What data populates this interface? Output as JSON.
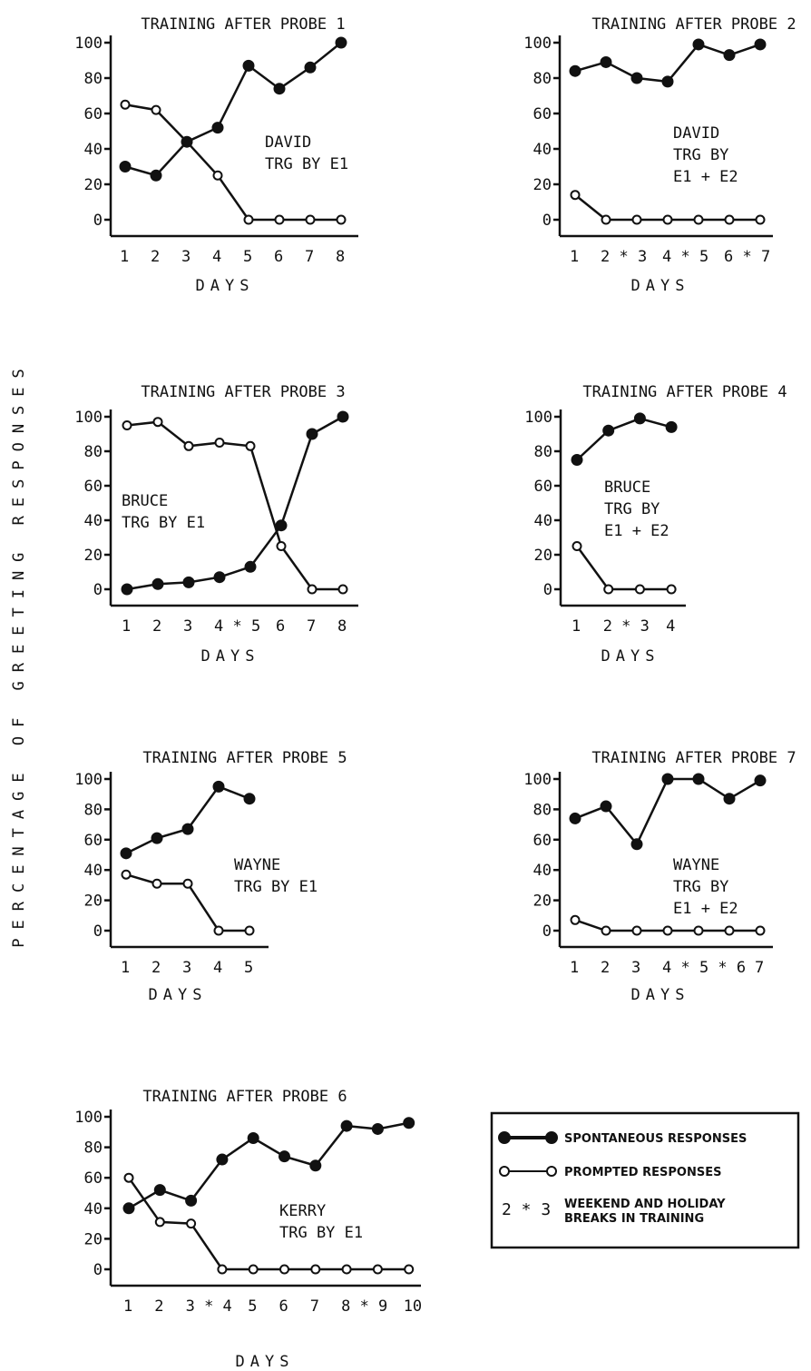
{
  "y_axis_label": "PERCENTAGE OF GREETING RESPONSES",
  "legend": {
    "spontaneous": "SPONTANEOUS RESPONSES",
    "prompted": "PROMPTED RESPONSES",
    "break_marker": "2 * 3",
    "break_line1": "WEEKEND AND HOLIDAY",
    "break_line2": "BREAKS IN TRAINING"
  },
  "chart_data": [
    {
      "type": "line",
      "title": "TRAINING AFTER PROBE 1",
      "xlabel": "DAYS",
      "x": [
        1,
        2,
        3,
        4,
        5,
        6,
        7,
        8
      ],
      "x_tick_labels": [
        "1",
        "2",
        "3",
        "4",
        "5",
        "6",
        "7",
        "8"
      ],
      "ylim": [
        0,
        100
      ],
      "y_ticks": [
        0,
        20,
        40,
        60,
        80,
        100
      ],
      "subject_lines": [
        "DAVID",
        "TRG BY E1"
      ],
      "series": [
        {
          "name": "SPONTANEOUS RESPONSES",
          "values": [
            30,
            25,
            44,
            52,
            87,
            74,
            86,
            100
          ]
        },
        {
          "name": "PROMPTED RESPONSES",
          "values": [
            65,
            62,
            44,
            25,
            0,
            0,
            0,
            0
          ]
        }
      ]
    },
    {
      "type": "line",
      "title": "TRAINING AFTER PROBE 2",
      "xlabel": "DAYS",
      "x": [
        1,
        2,
        3,
        4,
        5,
        6,
        7
      ],
      "x_tick_labels": [
        "1",
        "2*3",
        "4*5",
        "6*7"
      ],
      "ylim": [
        0,
        100
      ],
      "y_ticks": [
        0,
        20,
        40,
        60,
        80,
        100
      ],
      "subject_lines": [
        "DAVID",
        "TRG BY",
        "E1 + E2"
      ],
      "series": [
        {
          "name": "SPONTANEOUS RESPONSES",
          "values": [
            84,
            89,
            80,
            78,
            99,
            93,
            99
          ]
        },
        {
          "name": "PROMPTED RESPONSES",
          "values": [
            14,
            0,
            0,
            0,
            0,
            0,
            0
          ]
        }
      ]
    },
    {
      "type": "line",
      "title": "TRAINING AFTER PROBE 3",
      "xlabel": "DAYS",
      "x": [
        1,
        2,
        3,
        4,
        5,
        6,
        7,
        8
      ],
      "x_tick_labels": [
        "1",
        "2",
        "3",
        "4*5",
        "6",
        "7",
        "8"
      ],
      "ylim": [
        0,
        100
      ],
      "y_ticks": [
        0,
        20,
        40,
        60,
        80,
        100
      ],
      "subject_lines": [
        "BRUCE",
        "TRG BY E1"
      ],
      "series": [
        {
          "name": "SPONTANEOUS RESPONSES",
          "values": [
            0,
            3,
            4,
            7,
            13,
            37,
            90,
            100
          ]
        },
        {
          "name": "PROMPTED RESPONSES",
          "values": [
            95,
            97,
            83,
            85,
            83,
            25,
            0,
            0
          ]
        }
      ]
    },
    {
      "type": "line",
      "title": "TRAINING AFTER PROBE 4",
      "xlabel": "DAYS",
      "x": [
        1,
        2,
        3,
        4
      ],
      "x_tick_labels": [
        "1",
        "2*3",
        "4"
      ],
      "ylim": [
        0,
        100
      ],
      "y_ticks": [
        0,
        20,
        40,
        60,
        80,
        100
      ],
      "subject_lines": [
        "BRUCE",
        "TRG BY",
        "E1 + E2"
      ],
      "series": [
        {
          "name": "SPONTANEOUS RESPONSES",
          "values": [
            75,
            92,
            99,
            94
          ]
        },
        {
          "name": "PROMPTED RESPONSES",
          "values": [
            25,
            0,
            0,
            0
          ]
        }
      ]
    },
    {
      "type": "line",
      "title": "TRAINING AFTER PROBE 5",
      "xlabel": "DAYS",
      "x": [
        1,
        2,
        3,
        4,
        5
      ],
      "x_tick_labels": [
        "1",
        "2",
        "3",
        "4",
        "5"
      ],
      "ylim": [
        0,
        100
      ],
      "y_ticks": [
        0,
        20,
        40,
        60,
        80,
        100
      ],
      "subject_lines": [
        "WAYNE",
        "TRG BY E1"
      ],
      "series": [
        {
          "name": "SPONTANEOUS RESPONSES",
          "values": [
            51,
            61,
            67,
            95,
            87
          ]
        },
        {
          "name": "PROMPTED RESPONSES",
          "values": [
            37,
            31,
            31,
            0,
            0
          ]
        }
      ]
    },
    {
      "type": "line",
      "title": "TRAINING AFTER PROBE 7",
      "xlabel": "DAYS",
      "x": [
        1,
        2,
        3,
        4,
        5,
        6,
        7
      ],
      "x_tick_labels": [
        "1",
        "2",
        "3",
        "4*5*6",
        "7"
      ],
      "ylim": [
        0,
        100
      ],
      "y_ticks": [
        0,
        20,
        40,
        60,
        80,
        100
      ],
      "subject_lines": [
        "WAYNE",
        "TRG BY",
        "E1 + E2"
      ],
      "series": [
        {
          "name": "SPONTANEOUS RESPONSES",
          "values": [
            74,
            82,
            57,
            100,
            100,
            87,
            99
          ]
        },
        {
          "name": "PROMPTED RESPONSES",
          "values": [
            7,
            0,
            0,
            0,
            0,
            0,
            0
          ]
        }
      ]
    },
    {
      "type": "line",
      "title": "TRAINING AFTER PROBE 6",
      "xlabel": "DAYS",
      "x": [
        1,
        2,
        3,
        4,
        5,
        6,
        7,
        8,
        9,
        10
      ],
      "x_tick_labels": [
        "1",
        "2",
        "3*4",
        "5",
        "6",
        "7",
        "8*9",
        "10"
      ],
      "ylim": [
        0,
        100
      ],
      "y_ticks": [
        0,
        20,
        40,
        60,
        80,
        100
      ],
      "subject_lines": [
        "KERRY",
        "TRG BY E1"
      ],
      "series": [
        {
          "name": "SPONTANEOUS RESPONSES",
          "values": [
            40,
            52,
            45,
            72,
            86,
            74,
            68,
            94,
            92,
            96
          ]
        },
        {
          "name": "PROMPTED RESPONSES",
          "values": [
            60,
            31,
            30,
            0,
            0,
            0,
            0,
            0,
            0,
            0
          ]
        }
      ]
    }
  ]
}
